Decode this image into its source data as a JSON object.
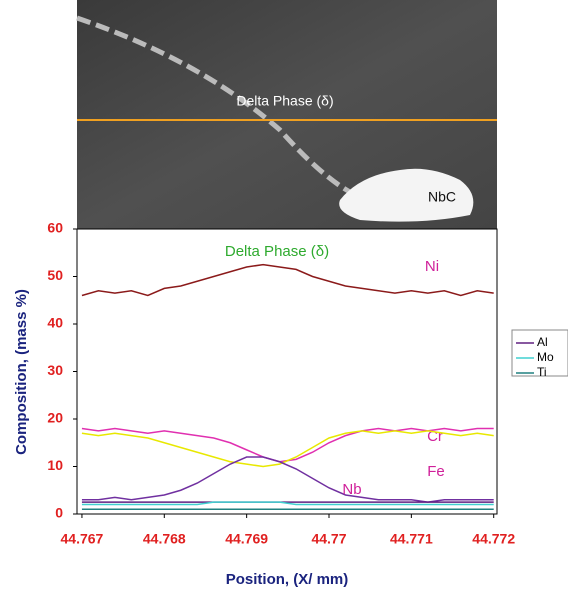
{
  "micrograph": {
    "labels": [
      "Delta Phase (δ)",
      "NbC"
    ]
  },
  "chart_data": {
    "type": "line",
    "annotation": "Delta Phase (δ)",
    "xlabel": "Position, (X/ mm)",
    "ylabel": "Composition, (mass %)",
    "xlim": [
      44.76694,
      44.77204
    ],
    "xticks": [
      44.767,
      44.768,
      44.769,
      44.77,
      44.771,
      44.772
    ],
    "ylim": [
      0,
      60
    ],
    "yticks": [
      0,
      10,
      20,
      30,
      40,
      50,
      60
    ],
    "x": [
      44.767,
      44.7672,
      44.7674,
      44.7676,
      44.7678,
      44.768,
      44.7682,
      44.7684,
      44.7686,
      44.7688,
      44.769,
      44.7692,
      44.7694,
      44.7696,
      44.7698,
      44.77,
      44.7702,
      44.7704,
      44.7706,
      44.7708,
      44.771,
      44.7712,
      44.7714,
      44.7716,
      44.7718,
      44.772
    ],
    "series": [
      {
        "name": "Ni",
        "color": "#8b1a1a",
        "legend": false,
        "values": [
          46,
          47,
          46.5,
          47,
          46,
          47.5,
          48,
          49,
          50,
          51,
          52,
          52.5,
          52,
          51.5,
          50,
          49,
          48,
          47.5,
          47,
          46.5,
          47,
          46.5,
          47,
          46,
          47,
          46.5
        ]
      },
      {
        "name": "Cr",
        "color": "#e030b0",
        "legend": false,
        "values": [
          18,
          17.5,
          18,
          17.5,
          17,
          17.5,
          17,
          16.5,
          16,
          15,
          13.5,
          12,
          11,
          11.5,
          13,
          15,
          16.5,
          17.5,
          18,
          17.5,
          18,
          17.5,
          18,
          17.5,
          18,
          18
        ]
      },
      {
        "name": "Fe",
        "color": "#e8e800",
        "legend": false,
        "values": [
          17,
          16.5,
          17,
          16.5,
          16,
          15,
          14,
          13,
          12,
          11,
          10.5,
          10,
          10.5,
          12,
          14,
          16,
          17,
          17.5,
          17,
          17.5,
          17,
          17.5,
          17,
          16.5,
          17,
          16.5
        ]
      },
      {
        "name": "Nb",
        "color": "#7030a0",
        "legend": false,
        "values": [
          3,
          3,
          3.5,
          3,
          3.5,
          4,
          5,
          6.5,
          8.5,
          10.5,
          12,
          12,
          11,
          9.5,
          7.5,
          5.5,
          4,
          3.5,
          3,
          3,
          3,
          2.5,
          3,
          3,
          3,
          3
        ]
      },
      {
        "name": "Al",
        "color": "#602080",
        "legend": true,
        "values": [
          2.5,
          2.5,
          2.5,
          2.5,
          2.5,
          2.5,
          2.5,
          2.5,
          2.5,
          2.5,
          2.5,
          2.5,
          2.5,
          2.5,
          2.5,
          2.5,
          2.5,
          2.5,
          2.5,
          2.5,
          2.5,
          2.5,
          2.5,
          2.5,
          2.5,
          2.5
        ]
      },
      {
        "name": "Mo",
        "color": "#40d0d0",
        "legend": true,
        "values": [
          2,
          2,
          2,
          2,
          2,
          2,
          2,
          2,
          2.5,
          2.5,
          2.5,
          2.5,
          2.5,
          2,
          2,
          2,
          2,
          2,
          2,
          2,
          2,
          2,
          2,
          2,
          2,
          2
        ]
      },
      {
        "name": "Ti",
        "color": "#208080",
        "legend": true,
        "values": [
          1,
          1,
          1,
          1,
          1,
          1,
          1,
          1,
          1,
          1,
          1,
          1,
          1,
          1,
          1,
          1,
          1,
          1,
          1,
          1,
          1,
          1,
          1,
          1,
          1,
          1
        ]
      }
    ]
  }
}
